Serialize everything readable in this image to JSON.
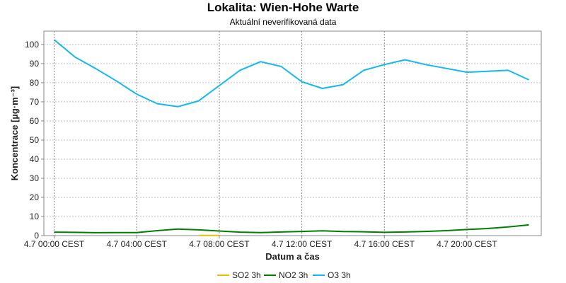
{
  "chart_data": {
    "type": "line",
    "title": "Lokalita: Wien-Hohe  Warte",
    "subtitle": "Aktuální neverifikovaná data",
    "xlabel": "Datum a čas",
    "ylabel": "Koncentrace [µg·m⁻³]",
    "x_ticks": [
      "4.7 00:00 CEST",
      "4.7 04:00 CEST",
      "4.7 08:00 CEST",
      "4.7 12:00 CEST",
      "4.7 16:00 CEST",
      "4.7 20:00 CEST"
    ],
    "x_range": [
      -0.5,
      23.6
    ],
    "ylim": [
      0,
      107
    ],
    "y_ticks": [
      0,
      10,
      20,
      30,
      40,
      50,
      60,
      70,
      80,
      90,
      100
    ],
    "grid": true,
    "legend": "bottom",
    "series": [
      {
        "name": "SO2 3h",
        "color": "#e8c000",
        "x": [
          7,
          8
        ],
        "y": [
          0.1,
          0.1
        ]
      },
      {
        "name": "NO2 3h",
        "color": "#008000",
        "x": [
          0,
          1,
          2,
          3,
          4,
          5,
          6,
          7,
          8,
          9,
          10,
          11,
          12,
          13,
          14,
          15,
          16,
          17,
          18,
          19,
          20,
          21,
          22,
          23
        ],
        "y": [
          1.8,
          1.7,
          1.5,
          1.6,
          1.6,
          2.6,
          3.4,
          3.0,
          2.4,
          1.8,
          1.6,
          1.9,
          2.2,
          2.5,
          2.1,
          2.0,
          1.7,
          1.9,
          2.2,
          2.6,
          3.2,
          3.7,
          4.5,
          5.6
        ]
      },
      {
        "name": "O3 3h",
        "color": "#14b8f0",
        "x": [
          0,
          1,
          2,
          3,
          4,
          5,
          6,
          7,
          8,
          9,
          10,
          11,
          12,
          13,
          14,
          15,
          16,
          17,
          18,
          19,
          20,
          21,
          22,
          23
        ],
        "y": [
          102.5,
          93.5,
          87.5,
          81.0,
          74.0,
          69.0,
          67.5,
          70.5,
          78.5,
          86.5,
          91.0,
          88.5,
          80.5,
          77.0,
          79.0,
          86.5,
          89.5,
          92.0,
          89.5,
          87.5,
          85.5,
          86.0,
          86.5,
          81.5
        ]
      }
    ]
  }
}
